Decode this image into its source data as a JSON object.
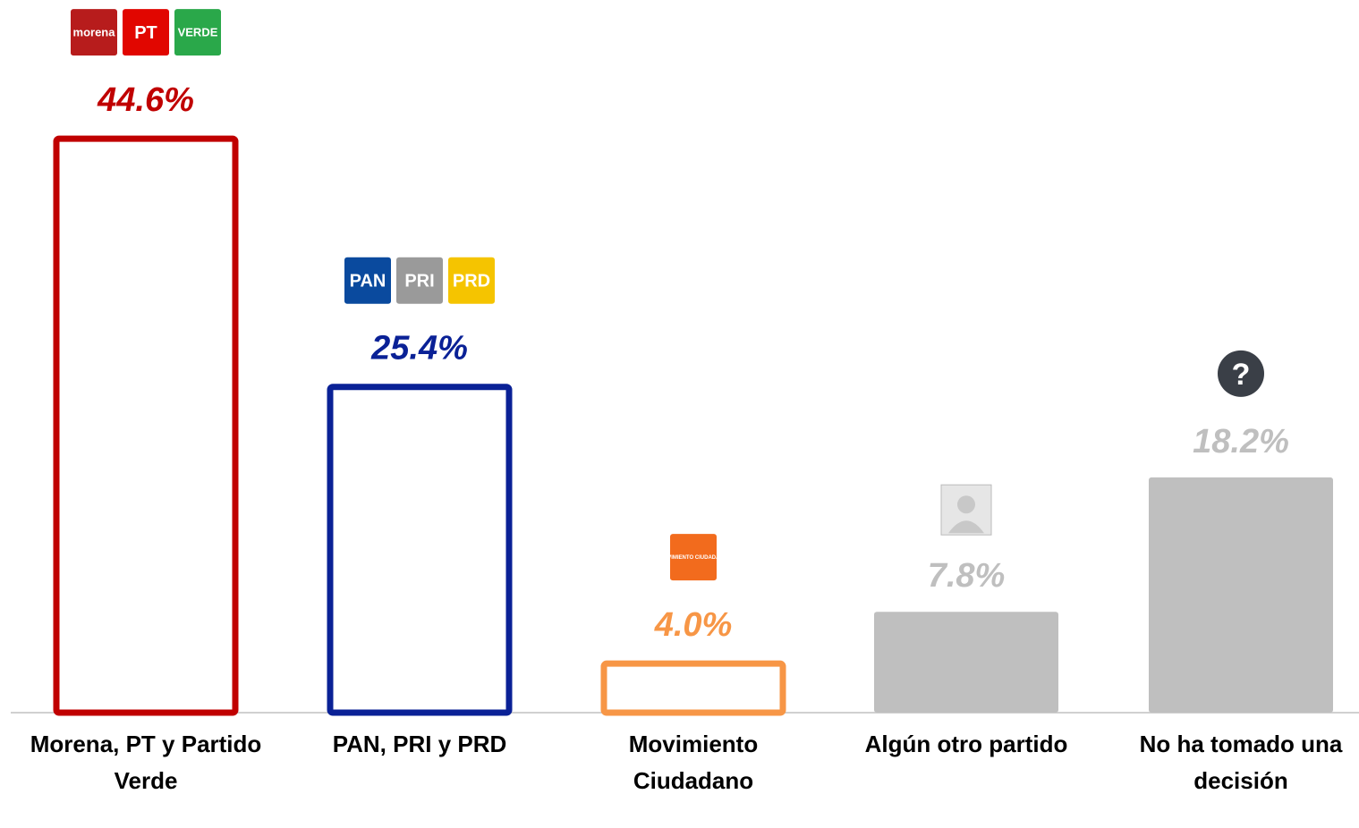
{
  "chart_data": {
    "type": "bar",
    "categories": [
      "Morena, PT y Partido Verde",
      "PAN, PRI y PRD",
      "Movimiento Ciudadano",
      "Algún otro partido",
      "No ha tomado una decisión"
    ],
    "values": [
      44.6,
      25.4,
      4.0,
      7.8,
      18.2
    ],
    "value_labels": [
      "44.6%",
      "25.4%",
      "4.0%",
      "7.8%",
      "18.2%"
    ],
    "colors": [
      "#c00000",
      "#0a2196",
      "#f79646",
      "#bfbfbf",
      "#bfbfbf"
    ],
    "bar_styles": [
      "outline",
      "outline",
      "outline",
      "filled",
      "filled"
    ],
    "logos": [
      [
        "morena",
        "PT",
        "VERDE"
      ],
      [
        "PAN",
        "PRI",
        "PRD"
      ],
      [
        "MOVIMIENTO CIUDADANO"
      ],
      [],
      [
        "?"
      ]
    ]
  }
}
